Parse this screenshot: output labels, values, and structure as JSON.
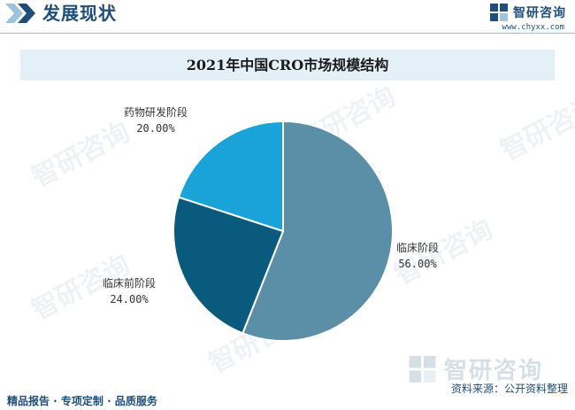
{
  "header": {
    "title": "发展现状",
    "brand_name": "智研咨询",
    "brand_url": "www.chyxx.com"
  },
  "watermark_text": "智研咨询",
  "footer": {
    "left_text": "精品报告 · 专项定制 · 品质服务",
    "source_text": "资料来源：公开资料整理",
    "logo_text": "智研咨询"
  },
  "colors": {
    "accent": "#1f4e79",
    "title_band": "#e4f0f8"
  },
  "chart_data": {
    "type": "pie",
    "title": "2021年中国CRO市场规模结构",
    "slices": [
      {
        "label": "临床阶段",
        "value": 56.0,
        "display": "56.00%",
        "color": "#5b8fa8"
      },
      {
        "label": "临床前阶段",
        "value": 24.0,
        "display": "24.00%",
        "color": "#0a5a7d"
      },
      {
        "label": "药物研发阶段",
        "value": 20.0,
        "display": "20.00%",
        "color": "#1aa3d9"
      }
    ],
    "start_angle": "12 o'clock",
    "direction": "clockwise",
    "legend": "none"
  }
}
